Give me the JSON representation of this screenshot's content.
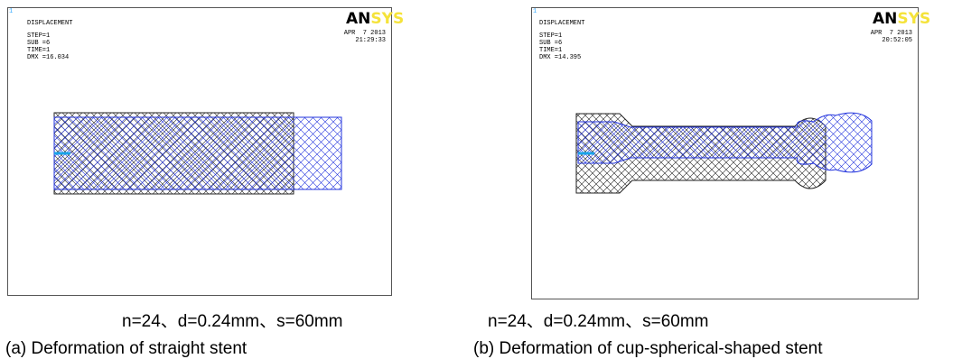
{
  "panels": [
    {
      "header": {
        "corner": "1",
        "title": "DISPLACEMENT",
        "step": "STEP=1",
        "sub": "SUB =6",
        "time": "TIME=1",
        "dmx": "DMX =16.034",
        "date": "APR  7 2013",
        "clock": "21:29:33",
        "logo_dark": "AN",
        "logo_light": "SYS"
      },
      "parameters": "n=24、d=0.24mm、s=60mm",
      "caption": "(a) Deformation of straight stent"
    },
    {
      "header": {
        "corner": "1",
        "title": "DISPLACEMENT",
        "step": "STEP=1",
        "sub": "SUB =6",
        "time": "TIME=1",
        "dmx": "DMX =14.395",
        "date": "APR  7 2013",
        "clock": "20:52:05",
        "logo_dark": "AN",
        "logo_light": "SYS"
      },
      "parameters": "n=24、d=0.24mm、s=60mm",
      "caption": "(b) Deformation of cup-spherical-shaped stent"
    }
  ]
}
